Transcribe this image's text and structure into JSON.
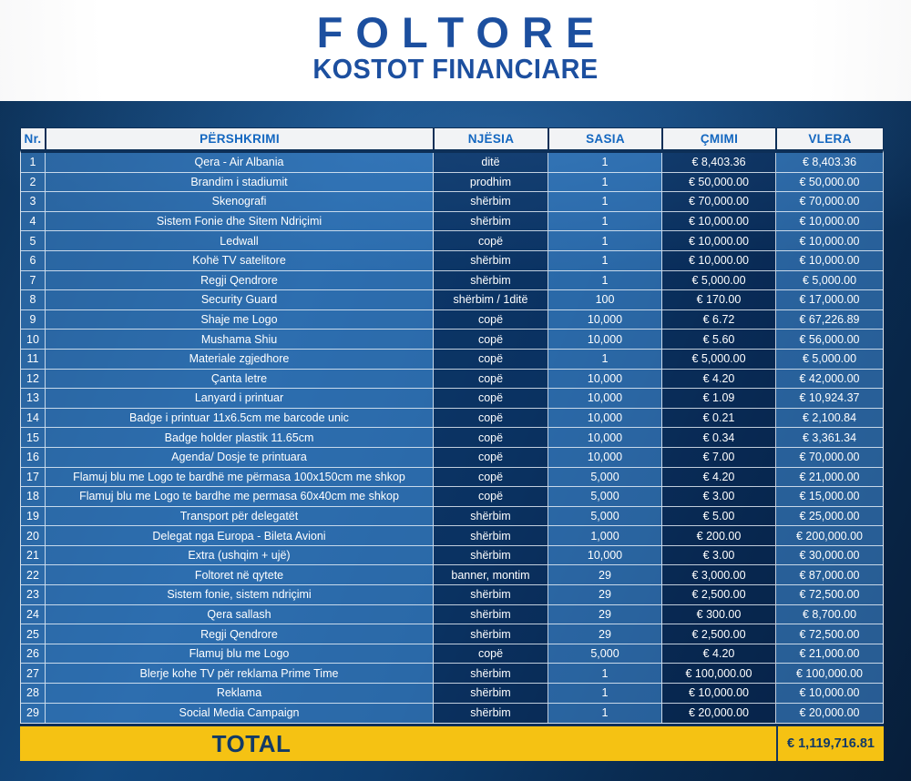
{
  "header": {
    "title": "FOLTORE",
    "subtitle": "KOSTOT FINANCIARE"
  },
  "table": {
    "columns": [
      "Nr.",
      "PËRSHKRIMI",
      "NJËSIA",
      "SASIA",
      "ÇMIMI",
      "VLERA"
    ],
    "rows": [
      [
        "1",
        "Qera - Air Albania",
        "ditë",
        "1",
        "€ 8,403.36",
        "€ 8,403.36"
      ],
      [
        "2",
        "Brandim i stadiumit",
        "prodhim",
        "1",
        "€ 50,000.00",
        "€ 50,000.00"
      ],
      [
        "3",
        "Skenografi",
        "shërbim",
        "1",
        "€ 70,000.00",
        "€ 70,000.00"
      ],
      [
        "4",
        "Sistem Fonie dhe Sitem Ndriçimi",
        "shërbim",
        "1",
        "€ 10,000.00",
        "€ 10,000.00"
      ],
      [
        "5",
        "Ledwall",
        "copë",
        "1",
        "€ 10,000.00",
        "€ 10,000.00"
      ],
      [
        "6",
        "Kohë TV satelitore",
        "shërbim",
        "1",
        "€ 10,000.00",
        "€ 10,000.00"
      ],
      [
        "7",
        "Regji Qendrore",
        "shërbim",
        "1",
        "€ 5,000.00",
        "€ 5,000.00"
      ],
      [
        "8",
        "Security Guard",
        "shërbim / 1ditë",
        "100",
        "€ 170.00",
        "€ 17,000.00"
      ],
      [
        "9",
        "Shaje me Logo",
        "copë",
        "10,000",
        "€ 6.72",
        "€ 67,226.89"
      ],
      [
        "10",
        "Mushama Shiu",
        "copë",
        "10,000",
        "€ 5.60",
        "€ 56,000.00"
      ],
      [
        "11",
        "Materiale zgjedhore",
        "copë",
        "1",
        "€ 5,000.00",
        "€ 5,000.00"
      ],
      [
        "12",
        "Çanta letre",
        "copë",
        "10,000",
        "€ 4.20",
        "€ 42,000.00"
      ],
      [
        "13",
        "Lanyard i printuar",
        "copë",
        "10,000",
        "€ 1.09",
        "€ 10,924.37"
      ],
      [
        "14",
        "Badge i printuar 11x6.5cm me barcode unic",
        "copë",
        "10,000",
        "€ 0.21",
        "€ 2,100.84"
      ],
      [
        "15",
        "Badge holder plastik 11.65cm",
        "copë",
        "10,000",
        "€ 0.34",
        "€ 3,361.34"
      ],
      [
        "16",
        "Agenda/ Dosje te printuara",
        "copë",
        "10,000",
        "€ 7.00",
        "€ 70,000.00"
      ],
      [
        "17",
        "Flamuj blu me Logo te bardhë me përmasa 100x150cm me shkop",
        "copë",
        "5,000",
        "€ 4.20",
        "€ 21,000.00"
      ],
      [
        "18",
        "Flamuj blu me Logo te bardhe me permasa 60x40cm me shkop",
        "copë",
        "5,000",
        "€ 3.00",
        "€ 15,000.00"
      ],
      [
        "19",
        "Transport për delegatët",
        "shërbim",
        "5,000",
        "€ 5.00",
        "€ 25,000.00"
      ],
      [
        "20",
        "Delegat nga Europa - Bileta Avioni",
        "shërbim",
        "1,000",
        "€ 200.00",
        "€ 200,000.00"
      ],
      [
        "21",
        "Extra (ushqim + ujë)",
        "shërbim",
        "10,000",
        "€ 3.00",
        "€ 30,000.00"
      ],
      [
        "22",
        "Foltoret në qytete",
        "banner, montim",
        "29",
        "€ 3,000.00",
        "€ 87,000.00"
      ],
      [
        "23",
        "Sistem fonie, sistem ndriçimi",
        "shërbim",
        "29",
        "€ 2,500.00",
        "€ 72,500.00"
      ],
      [
        "24",
        "Qera sallash",
        "shërbim",
        "29",
        "€ 300.00",
        "€ 8,700.00"
      ],
      [
        "25",
        "Regji Qendrore",
        "shërbim",
        "29",
        "€ 2,500.00",
        "€ 72,500.00"
      ],
      [
        "26",
        "Flamuj blu me Logo",
        "copë",
        "5,000",
        "€ 4.20",
        "€ 21,000.00"
      ],
      [
        "27",
        "Blerje kohe TV për reklama Prime Time",
        "shërbim",
        "1",
        "€ 100,000.00",
        "€ 100,000.00"
      ],
      [
        "28",
        "Reklama",
        "shërbim",
        "1",
        "€ 10,000.00",
        "€ 10,000.00"
      ],
      [
        "29",
        "Social Media Campaign",
        "shërbim",
        "1",
        "€ 20,000.00",
        "€ 20,000.00"
      ]
    ],
    "total": {
      "label": "TOTAL",
      "value": "€ 1,119,716.81"
    }
  },
  "colors": {
    "title_blue": "#1c4f9f",
    "header_text_blue": "#1467c0",
    "header_cell_bg": "#f2f3f5",
    "navy_border": "#0d2f57",
    "panel_navy_light": "#134a81",
    "panel_navy_dark": "#071e3a",
    "row_light_blue": "#2e6ab0",
    "row_dark_blue": "#123e72",
    "total_yellow": "#f5c213",
    "total_text_navy": "#133a66",
    "row_text": "#ffffff"
  }
}
